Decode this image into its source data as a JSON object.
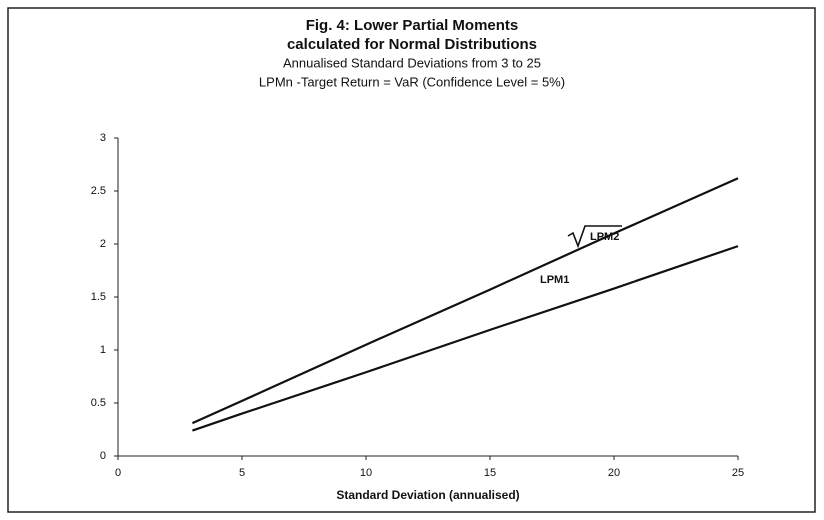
{
  "chart_data": {
    "type": "line",
    "title": "Fig. 4: Lower Partial Moments",
    "title_line2": "calculated for Normal Distributions",
    "subtitle": "Annualised Standard Deviations from 3 to 25",
    "subtitle_line2": "LPMn -Target Return = VaR (Confidence Level = 5%)",
    "x_label": "Standard Deviation (annualised)",
    "x": [
      3,
      5,
      10,
      15,
      20,
      25
    ],
    "series": [
      {
        "name": "LPM2",
        "color": "#111111",
        "values": [
          0.31,
          0.52,
          1.05,
          1.57,
          2.1,
          2.62
        ]
      },
      {
        "name": "LPM1",
        "color": "#111111",
        "values": [
          0.24,
          0.4,
          0.79,
          1.19,
          1.58,
          1.98
        ]
      }
    ],
    "xlim": [
      0,
      25
    ],
    "xticks": [
      0,
      5,
      10,
      15,
      20,
      25
    ],
    "ylim": [
      0,
      3
    ],
    "yticks": [
      0,
      0.5,
      1,
      1.5,
      2,
      2.5,
      3
    ],
    "grid": false
  }
}
